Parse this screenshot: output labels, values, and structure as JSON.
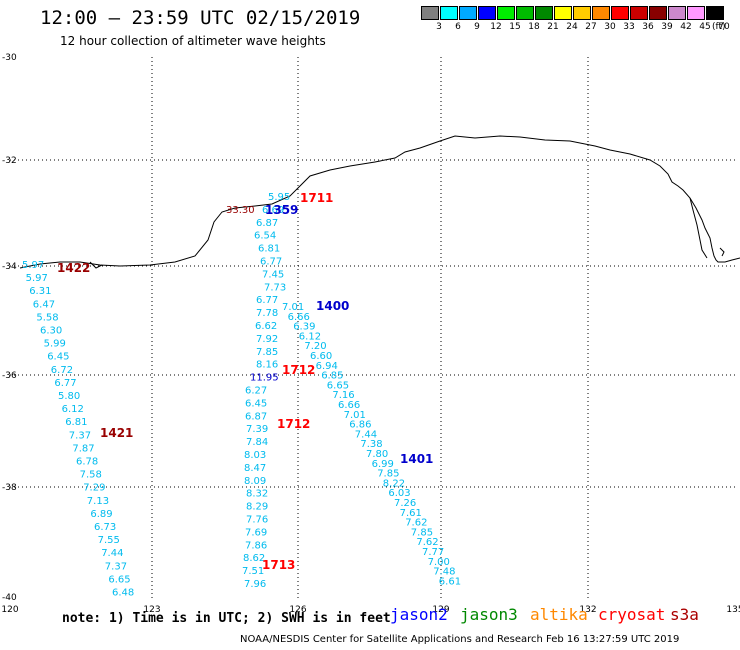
{
  "title": "12:00 — 23:59 UTC 02/15/2019",
  "subtitle": "12 hour collection of altimeter wave heights",
  "legend": {
    "unit": "(ft)",
    "swatches": [
      {
        "color": "#808080",
        "label": "3"
      },
      {
        "color": "#00ffff",
        "label": "6"
      },
      {
        "color": "#00aaff",
        "label": "9"
      },
      {
        "color": "#0000ff",
        "label": "12"
      },
      {
        "color": "#00ee00",
        "label": "15"
      },
      {
        "color": "#00bb00",
        "label": "18"
      },
      {
        "color": "#008800",
        "label": "21"
      },
      {
        "color": "#ffff00",
        "label": "24"
      },
      {
        "color": "#ffcc00",
        "label": "27"
      },
      {
        "color": "#ff8800",
        "label": "30"
      },
      {
        "color": "#ff0000",
        "label": "33"
      },
      {
        "color": "#cc0000",
        "label": "36"
      },
      {
        "color": "#880000",
        "label": "39"
      },
      {
        "color": "#cc88cc",
        "label": "42"
      },
      {
        "color": "#ff99ff",
        "label": "45"
      },
      {
        "color": "#000000",
        "label": "70"
      }
    ]
  },
  "axes": {
    "lon_ticks": [
      "120",
      "123",
      "126",
      "129",
      "132",
      "135"
    ],
    "lat_ticks": [
      "-30",
      "-32",
      "-34",
      "-36",
      "-38",
      "-40"
    ]
  },
  "note": "note: 1) Time is in UTC; 2) SWH is in feet",
  "satellites": [
    {
      "name": "jason2",
      "color": "#0000ff"
    },
    {
      "name": "jason3",
      "color": "#008800"
    },
    {
      "name": "altika",
      "color": "#ff8800"
    },
    {
      "name": "cryosat",
      "color": "#ff0000"
    },
    {
      "name": "s3a",
      "color": "#aa0000"
    }
  ],
  "footer": "NOAA/NESDIS Center for Satellite Applications and Research    Feb 16 13:27:59 UTC 2019",
  "colors": {
    "cyan_track": "#00bbee",
    "blue_track": "#0000cc"
  },
  "track_times": [
    {
      "label": "1711",
      "color": "#ff0000"
    },
    {
      "label": "1359",
      "color": "#0000cc"
    },
    {
      "label": "1422",
      "color": "#990000"
    },
    {
      "label": "1400",
      "color": "#0000cc"
    },
    {
      "label": "1712",
      "color": "#ff0000"
    },
    {
      "label": "1421",
      "color": "#990000"
    },
    {
      "label": "1712",
      "color": "#ff0000"
    },
    {
      "label": "1401",
      "color": "#0000cc"
    },
    {
      "label": "1713",
      "color": "#ff0000"
    }
  ],
  "tracks": [
    {
      "name": "s3a-west",
      "color": "#00bbee",
      "values": [
        "5.97",
        "5.97",
        "6.31",
        "6.47",
        "5.58",
        "6.30",
        "5.99",
        "6.45",
        "6.72",
        "6.77",
        "5.80",
        "6.12",
        "6.81",
        "7.37",
        "7.87",
        "6.78",
        "7.58",
        "7.29",
        "7.13",
        "6.89",
        "6.73",
        "7.55",
        "7.44",
        "7.37",
        "6.65",
        "6.48"
      ]
    },
    {
      "name": "cryosat-mid",
      "color": "#00bbee",
      "values": [
        "5.95",
        "6.69",
        "6.87",
        "6.54",
        "6.81",
        "6.77",
        "7.45",
        "7.73",
        "6.77",
        "7.78",
        "6.62",
        "7.92",
        "7.85",
        "8.16",
        "11.95",
        "6.27",
        "6.45",
        "6.87",
        "7.39",
        "7.84",
        "8.03",
        "8.47",
        "8.09",
        "8.32",
        "8.29",
        "7.76",
        "7.69",
        "7.86",
        "8.62",
        "7.51",
        "7.96"
      ]
    },
    {
      "name": "jason2-east",
      "color": "#00bbee",
      "values": [
        "7.01",
        "6.66",
        "6.39",
        "6.12",
        "7.20",
        "6.60",
        "6.94",
        "6.85",
        "6.65",
        "7.16",
        "6.66",
        "7.01",
        "6.86",
        "7.44",
        "7.38",
        "7.80",
        "6.99",
        "7.85",
        "8.22",
        "6.03",
        "7.26",
        "7.61",
        "7.62",
        "7.85",
        "7.62",
        "7.77",
        "7.00",
        "7.48",
        "6.61"
      ]
    },
    {
      "name": "cluster",
      "color": "#00bbee",
      "values": [
        "33.30"
      ]
    }
  ]
}
